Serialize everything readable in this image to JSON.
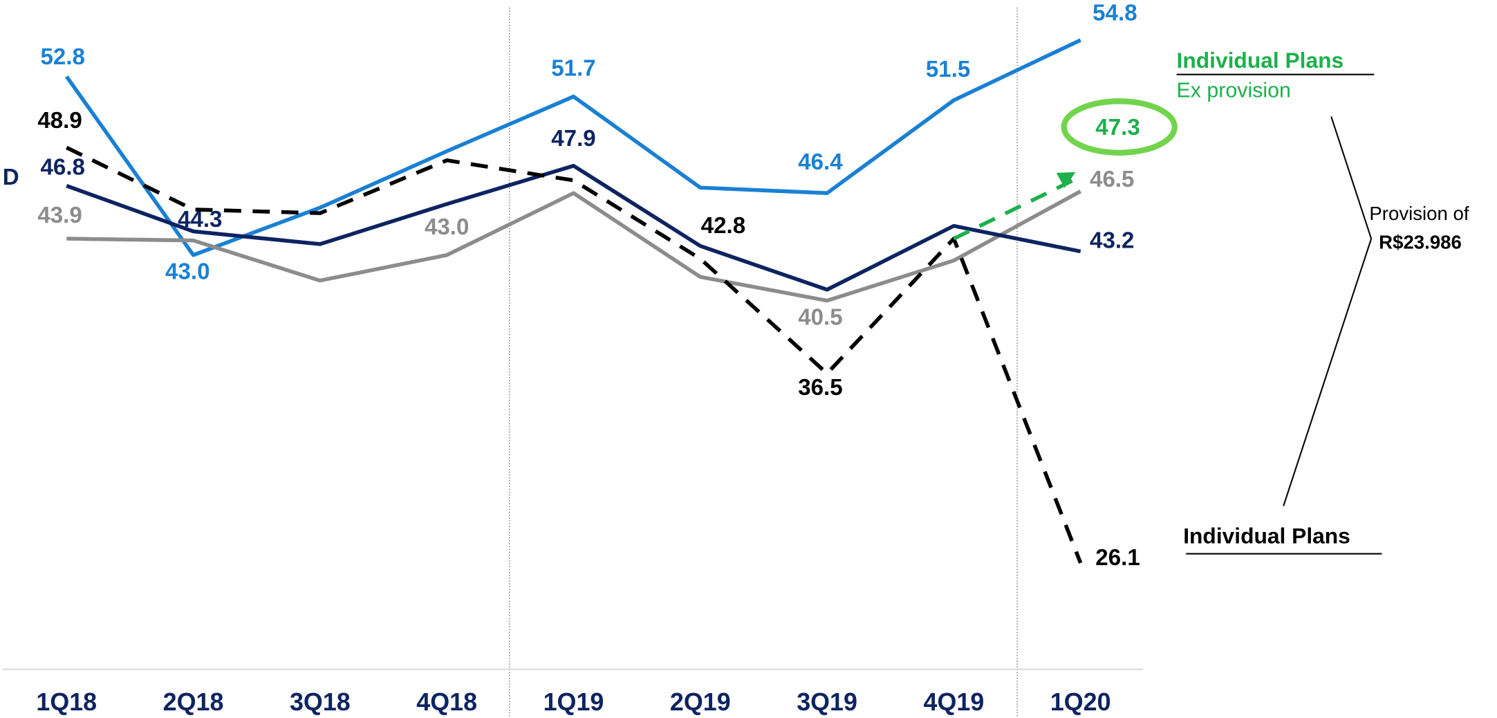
{
  "chart_data": {
    "type": "line",
    "categories": [
      "1Q18",
      "2Q18",
      "3Q18",
      "4Q18",
      "1Q19",
      "2Q19",
      "3Q19",
      "4Q19",
      "1Q20"
    ],
    "ylim": [
      20,
      57
    ],
    "series": [
      {
        "color": "#1a80d4",
        "values": [
          52.8,
          43.0,
          45.6,
          48.7,
          51.7,
          46.7,
          46.4,
          51.5,
          54.8
        ],
        "value_labels": [
          "52.8",
          "43.0",
          null,
          null,
          "51.7",
          null,
          "46.4",
          "51.5",
          "54.8"
        ]
      },
      {
        "color": "#8c8c8c",
        "values": [
          43.9,
          43.8,
          41.6,
          43.0,
          46.4,
          41.8,
          40.5,
          42.7,
          46.5
        ],
        "value_labels": [
          "43.9",
          null,
          null,
          "43.0",
          null,
          null,
          "40.5",
          null,
          "46.5"
        ]
      },
      {
        "color": "#0d2461",
        "values": [
          46.8,
          44.3,
          43.6,
          45.8,
          47.9,
          43.5,
          41.1,
          44.6,
          43.2
        ],
        "value_labels": [
          "46.8",
          "44.3",
          null,
          null,
          "47.9",
          null,
          null,
          null,
          "43.2"
        ]
      },
      {
        "name": "Individual Plans",
        "color": "#000000",
        "dashed": true,
        "values": [
          48.9,
          45.5,
          45.3,
          48.2,
          47.1,
          42.8,
          36.5,
          43.9,
          26.1
        ],
        "value_labels": [
          "48.9",
          null,
          null,
          null,
          null,
          "42.8",
          "36.5",
          null,
          "26.1"
        ]
      },
      {
        "color": "#1db04b",
        "dashed": true,
        "values": [
          null,
          null,
          null,
          null,
          null,
          null,
          null,
          43.9,
          47.3
        ],
        "value_labels": [
          null,
          null,
          null,
          null,
          null,
          null,
          null,
          null,
          "47.3"
        ]
      }
    ],
    "annotations": {
      "cut_legend": "D",
      "ex_title": "Individual Plans",
      "ex_subtitle": "Ex provision",
      "provision_line1": "Provision of",
      "provision_line2": "R$23.986"
    }
  }
}
